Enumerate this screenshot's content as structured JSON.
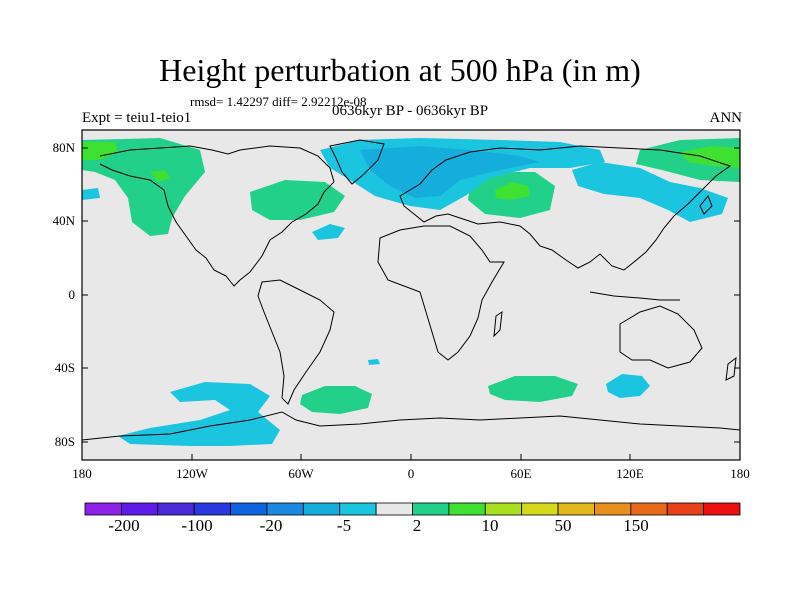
{
  "title": "Height perturbation at 500 hPa (in m)",
  "stats": "rmsd= 1.42297 diff= 2.92212e-08",
  "experiment": "Expt = teiu1-teio1",
  "period": "0636kyr BP - 0636kyr BP",
  "season": "ANN",
  "map": {
    "projection": "cylindrical equidistant",
    "lat_range": [
      -90,
      90
    ],
    "lon_range": [
      -180,
      180
    ],
    "lat_labels": [
      "80N",
      "40N",
      "0",
      "40S",
      "80S"
    ],
    "lon_labels": [
      "180",
      "120W",
      "60W",
      "0",
      "60E",
      "120E",
      "180"
    ],
    "background_color": "#e8e8e8"
  },
  "colorbar": {
    "colors": [
      "#8f21e8",
      "#5f1ce8",
      "#4b2bd8",
      "#2a38e0",
      "#0f63de",
      "#1a88e0",
      "#15aedc",
      "#1bc5df",
      "#e8e8e8",
      "#22d08a",
      "#3ee032",
      "#a8e020",
      "#d6d81c",
      "#e2b81a",
      "#e8901c",
      "#e86a18",
      "#e84018",
      "#ec1010"
    ],
    "tick_labels": [
      "-200",
      "-100",
      "-20",
      "-5",
      "2",
      "10",
      "50",
      "150"
    ]
  }
}
